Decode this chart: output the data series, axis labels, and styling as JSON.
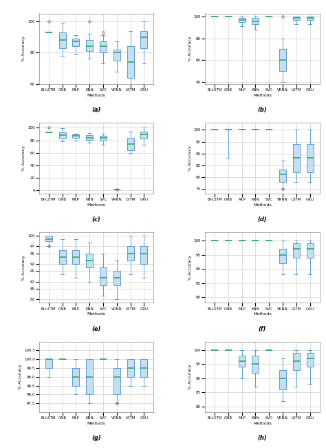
{
  "methods": [
    "Bi-LSTM",
    "GNB",
    "MLP",
    "KNN",
    "SVC",
    "VRNN",
    "LSTM",
    "GRU"
  ],
  "subplots": [
    {
      "label": "(a)",
      "ylim": [
        60,
        105
      ],
      "yticks": [
        60,
        80,
        100
      ],
      "data": [
        {
          "med": 93,
          "q1": 93,
          "q3": 93,
          "whislo": 93,
          "whishi": 93,
          "fliers": [
            100
          ]
        },
        {
          "med": 88,
          "q1": 83,
          "q3": 93,
          "whislo": 78,
          "whishi": 99,
          "fliers": []
        },
        {
          "med": 87,
          "q1": 84,
          "q3": 89,
          "whislo": 79,
          "whishi": 91,
          "fliers": []
        },
        {
          "med": 84,
          "q1": 81,
          "q3": 88,
          "whislo": 76,
          "whishi": 92,
          "fliers": [
            100
          ]
        },
        {
          "med": 84,
          "q1": 80,
          "q3": 87,
          "whislo": 73,
          "whishi": 91,
          "fliers": [
            93
          ]
        },
        {
          "med": 80,
          "q1": 75,
          "q3": 82,
          "whislo": 68,
          "whishi": 87,
          "fliers": []
        },
        {
          "med": 74,
          "q1": 64,
          "q3": 84,
          "whislo": 54,
          "whishi": 94,
          "fliers": []
        },
        {
          "med": 90,
          "q1": 83,
          "q3": 94,
          "whislo": 73,
          "whishi": 100,
          "fliers": []
        }
      ]
    },
    {
      "label": "(b)",
      "ylim": [
        38,
        103
      ],
      "yticks": [
        40,
        60,
        80,
        100
      ],
      "data": [
        {
          "med": 100,
          "q1": 100,
          "q3": 100,
          "whislo": 100,
          "whishi": 100,
          "fliers": []
        },
        {
          "med": 100,
          "q1": 100,
          "q3": 100,
          "whislo": 100,
          "whishi": 100,
          "fliers": []
        },
        {
          "med": 97,
          "q1": 95,
          "q3": 99,
          "whislo": 91,
          "whishi": 100,
          "fliers": []
        },
        {
          "med": 96,
          "q1": 93,
          "q3": 99,
          "whislo": 88,
          "whishi": 100,
          "fliers": []
        },
        {
          "med": 100,
          "q1": 100,
          "q3": 100,
          "whislo": 100,
          "whishi": 100,
          "fliers": []
        },
        {
          "med": 60,
          "q1": 50,
          "q3": 70,
          "whislo": 40,
          "whishi": 80,
          "fliers": [
            100
          ]
        },
        {
          "med": 99,
          "q1": 97,
          "q3": 100,
          "whislo": 93,
          "whishi": 100,
          "fliers": []
        },
        {
          "med": 99,
          "q1": 97,
          "q3": 100,
          "whislo": 93,
          "whishi": 100,
          "fliers": []
        }
      ]
    },
    {
      "label": "(c)",
      "ylim": [
        -5,
        108
      ],
      "yticks": [
        0,
        20,
        40,
        60,
        80,
        100
      ],
      "data": [
        {
          "med": 93,
          "q1": 93,
          "q3": 93,
          "whislo": 93,
          "whishi": 93,
          "fliers": [
            100
          ]
        },
        {
          "med": 88,
          "q1": 83,
          "q3": 93,
          "whislo": 78,
          "whishi": 99,
          "fliers": []
        },
        {
          "med": 87,
          "q1": 84,
          "q3": 89,
          "whislo": 79,
          "whishi": 91,
          "fliers": []
        },
        {
          "med": 84,
          "q1": 81,
          "q3": 88,
          "whislo": 76,
          "whishi": 92,
          "fliers": []
        },
        {
          "med": 84,
          "q1": 80,
          "q3": 87,
          "whislo": 73,
          "whishi": 91,
          "fliers": []
        },
        {
          "med": 1,
          "q1": 1,
          "q3": 1,
          "whislo": 1,
          "whishi": 1,
          "fliers": [
            1
          ]
        },
        {
          "med": 74,
          "q1": 64,
          "q3": 84,
          "whislo": 60,
          "whishi": 94,
          "fliers": []
        },
        {
          "med": 90,
          "q1": 83,
          "q3": 94,
          "whislo": 73,
          "whishi": 100,
          "fliers": []
        }
      ]
    },
    {
      "label": "(d)",
      "ylim": [
        73,
        103
      ],
      "yticks": [
        75,
        80,
        85,
        90,
        95,
        100
      ],
      "data": [
        {
          "med": 100,
          "q1": 100,
          "q3": 100,
          "whislo": 100,
          "whishi": 100,
          "fliers": []
        },
        {
          "med": 100,
          "q1": 100,
          "q3": 100,
          "whislo": 88,
          "whishi": 100,
          "fliers": []
        },
        {
          "med": 100,
          "q1": 100,
          "q3": 100,
          "whislo": 100,
          "whishi": 100,
          "fliers": []
        },
        {
          "med": 100,
          "q1": 100,
          "q3": 100,
          "whislo": 100,
          "whishi": 100,
          "fliers": []
        },
        {
          "med": 100,
          "q1": 100,
          "q3": 100,
          "whislo": 100,
          "whishi": 100,
          "fliers": []
        },
        {
          "med": 81,
          "q1": 78,
          "q3": 83,
          "whislo": 75,
          "whishi": 87,
          "fliers": [
            75
          ]
        },
        {
          "med": 88,
          "q1": 82,
          "q3": 94,
          "whislo": 78,
          "whishi": 100,
          "fliers": []
        },
        {
          "med": 88,
          "q1": 82,
          "q3": 94,
          "whislo": 78,
          "whishi": 100,
          "fliers": []
        }
      ]
    },
    {
      "label": "(e)",
      "ylim": [
        81,
        101
      ],
      "yticks": [
        82,
        85,
        87,
        90,
        92,
        95,
        97,
        100
      ],
      "data": [
        {
          "med": 99,
          "q1": 98.5,
          "q3": 100,
          "whislo": 97,
          "whishi": 100,
          "fliers": [
            97
          ]
        },
        {
          "med": 94,
          "q1": 92,
          "q3": 96,
          "whislo": 89,
          "whishi": 99,
          "fliers": []
        },
        {
          "med": 94,
          "q1": 92,
          "q3": 96,
          "whislo": 88,
          "whishi": 99,
          "fliers": []
        },
        {
          "med": 93,
          "q1": 91,
          "q3": 95,
          "whislo": 87,
          "whishi": 98,
          "fliers": []
        },
        {
          "med": 88,
          "q1": 86,
          "q3": 91,
          "whislo": 83,
          "whishi": 95,
          "fliers": []
        },
        {
          "med": 88,
          "q1": 86,
          "q3": 90,
          "whislo": 82,
          "whishi": 93,
          "fliers": []
        },
        {
          "med": 95,
          "q1": 93,
          "q3": 97,
          "whislo": 89,
          "whishi": 100,
          "fliers": []
        },
        {
          "med": 95,
          "q1": 92,
          "q3": 97,
          "whislo": 88,
          "whishi": 100,
          "fliers": []
        }
      ]
    },
    {
      "label": "(f)",
      "ylim": [
        78,
        103
      ],
      "yticks": [
        80,
        85,
        90,
        95,
        100
      ],
      "data": [
        {
          "med": 100,
          "q1": 100,
          "q3": 100,
          "whislo": 100,
          "whishi": 100,
          "fliers": []
        },
        {
          "med": 100,
          "q1": 100,
          "q3": 100,
          "whislo": 100,
          "whishi": 100,
          "fliers": []
        },
        {
          "med": 100,
          "q1": 100,
          "q3": 100,
          "whislo": 100,
          "whishi": 100,
          "fliers": []
        },
        {
          "med": 100,
          "q1": 100,
          "q3": 100,
          "whislo": 100,
          "whishi": 100,
          "fliers": []
        },
        {
          "med": 100,
          "q1": 100,
          "q3": 100,
          "whislo": 100,
          "whishi": 100,
          "fliers": []
        },
        {
          "med": 95,
          "q1": 92,
          "q3": 97,
          "whislo": 88,
          "whishi": 100,
          "fliers": []
        },
        {
          "med": 97,
          "q1": 94,
          "q3": 99,
          "whislo": 88,
          "whishi": 100,
          "fliers": []
        },
        {
          "med": 97,
          "q1": 94,
          "q3": 99,
          "whislo": 88,
          "whishi": 100,
          "fliers": []
        }
      ]
    }
  ],
  "box_facecolor": "#c5dff0",
  "box_edgecolor": "#5b9bd5",
  "median_color": "#27ae60",
  "whisker_color": "#5b9bd5",
  "flier_color": "#555555",
  "grid_color": "#d0d0d0",
  "bg_color": "#ffffff"
}
